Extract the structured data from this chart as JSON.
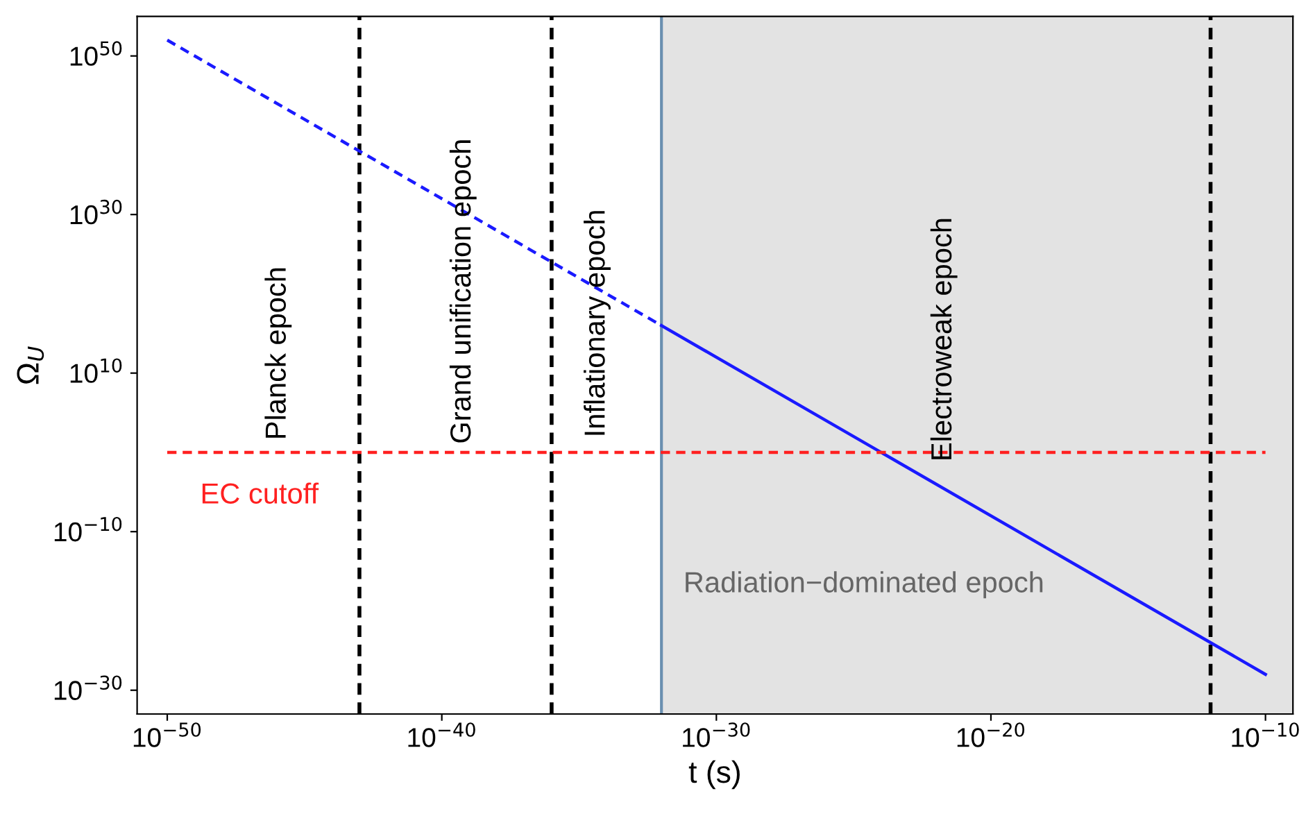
{
  "chart_data": {
    "type": "line",
    "log": "xy",
    "xlabel": "t (s)",
    "ylabel": "Ω$_{U}$",
    "xlim": [
      8e-52,
      1e-09
    ],
    "ylim": [
      1e-33,
      1e+55
    ],
    "xticks": [
      {
        "value": 1e-50,
        "label": "10$^{−50}$"
      },
      {
        "value": 1e-40,
        "label": "10$^{−40}$"
      },
      {
        "value": 1e-30,
        "label": "10$^{−30}$"
      },
      {
        "value": 1e-20,
        "label": "10$^{−20}$"
      },
      {
        "value": 1e-10,
        "label": "10$^{−10}$"
      }
    ],
    "yticks": [
      {
        "value": 1e-30,
        "label": "10$^{−30}$"
      },
      {
        "value": 1e-10,
        "label": "10$^{−10}$"
      },
      {
        "value": 10000000000.0,
        "label": "10$^{10}$"
      },
      {
        "value": 1e+30,
        "label": "10$^{30}$"
      },
      {
        "value": 1e+50,
        "label": "10$^{50}$"
      }
    ],
    "grid": false,
    "legend": false,
    "series": [
      {
        "color": "#1a1aff",
        "line_style": "dashed",
        "x": [
          1e-50,
          1e-32
        ],
        "values": [
          1e+52,
          1e+16
        ]
      },
      {
        "color": "#1a1aff",
        "line_style": "solid",
        "x": [
          1e-32,
          1e-10
        ],
        "values": [
          1e+16,
          1e-28
        ]
      },
      {
        "name": "EC cutoff",
        "color": "#ff2020",
        "line_style": "dashed",
        "x": [
          1e-50,
          1e-10
        ],
        "values": [
          1,
          1
        ]
      }
    ],
    "bands": [
      {
        "axis": "x",
        "from": 1e-32,
        "to": 1e-09,
        "label": "Radiation−dominated epoch",
        "color": "#e3e3e3"
      }
    ],
    "ref_lines": [
      {
        "axis": "x",
        "value": 1e-43,
        "color": "#000000",
        "line_style": "dashed"
      },
      {
        "axis": "x",
        "value": 1e-36,
        "color": "#000000",
        "line_style": "dashed"
      },
      {
        "axis": "x",
        "value": 1e-32,
        "color": "#6a8fb0",
        "line_style": "solid"
      },
      {
        "axis": "x",
        "value": 1e-12,
        "color": "#000000",
        "line_style": "dashed"
      }
    ],
    "annotations": [
      "Planck epoch",
      "Grand unification epoch",
      "Inflationary epoch",
      "Electroweak epoch"
    ]
  }
}
